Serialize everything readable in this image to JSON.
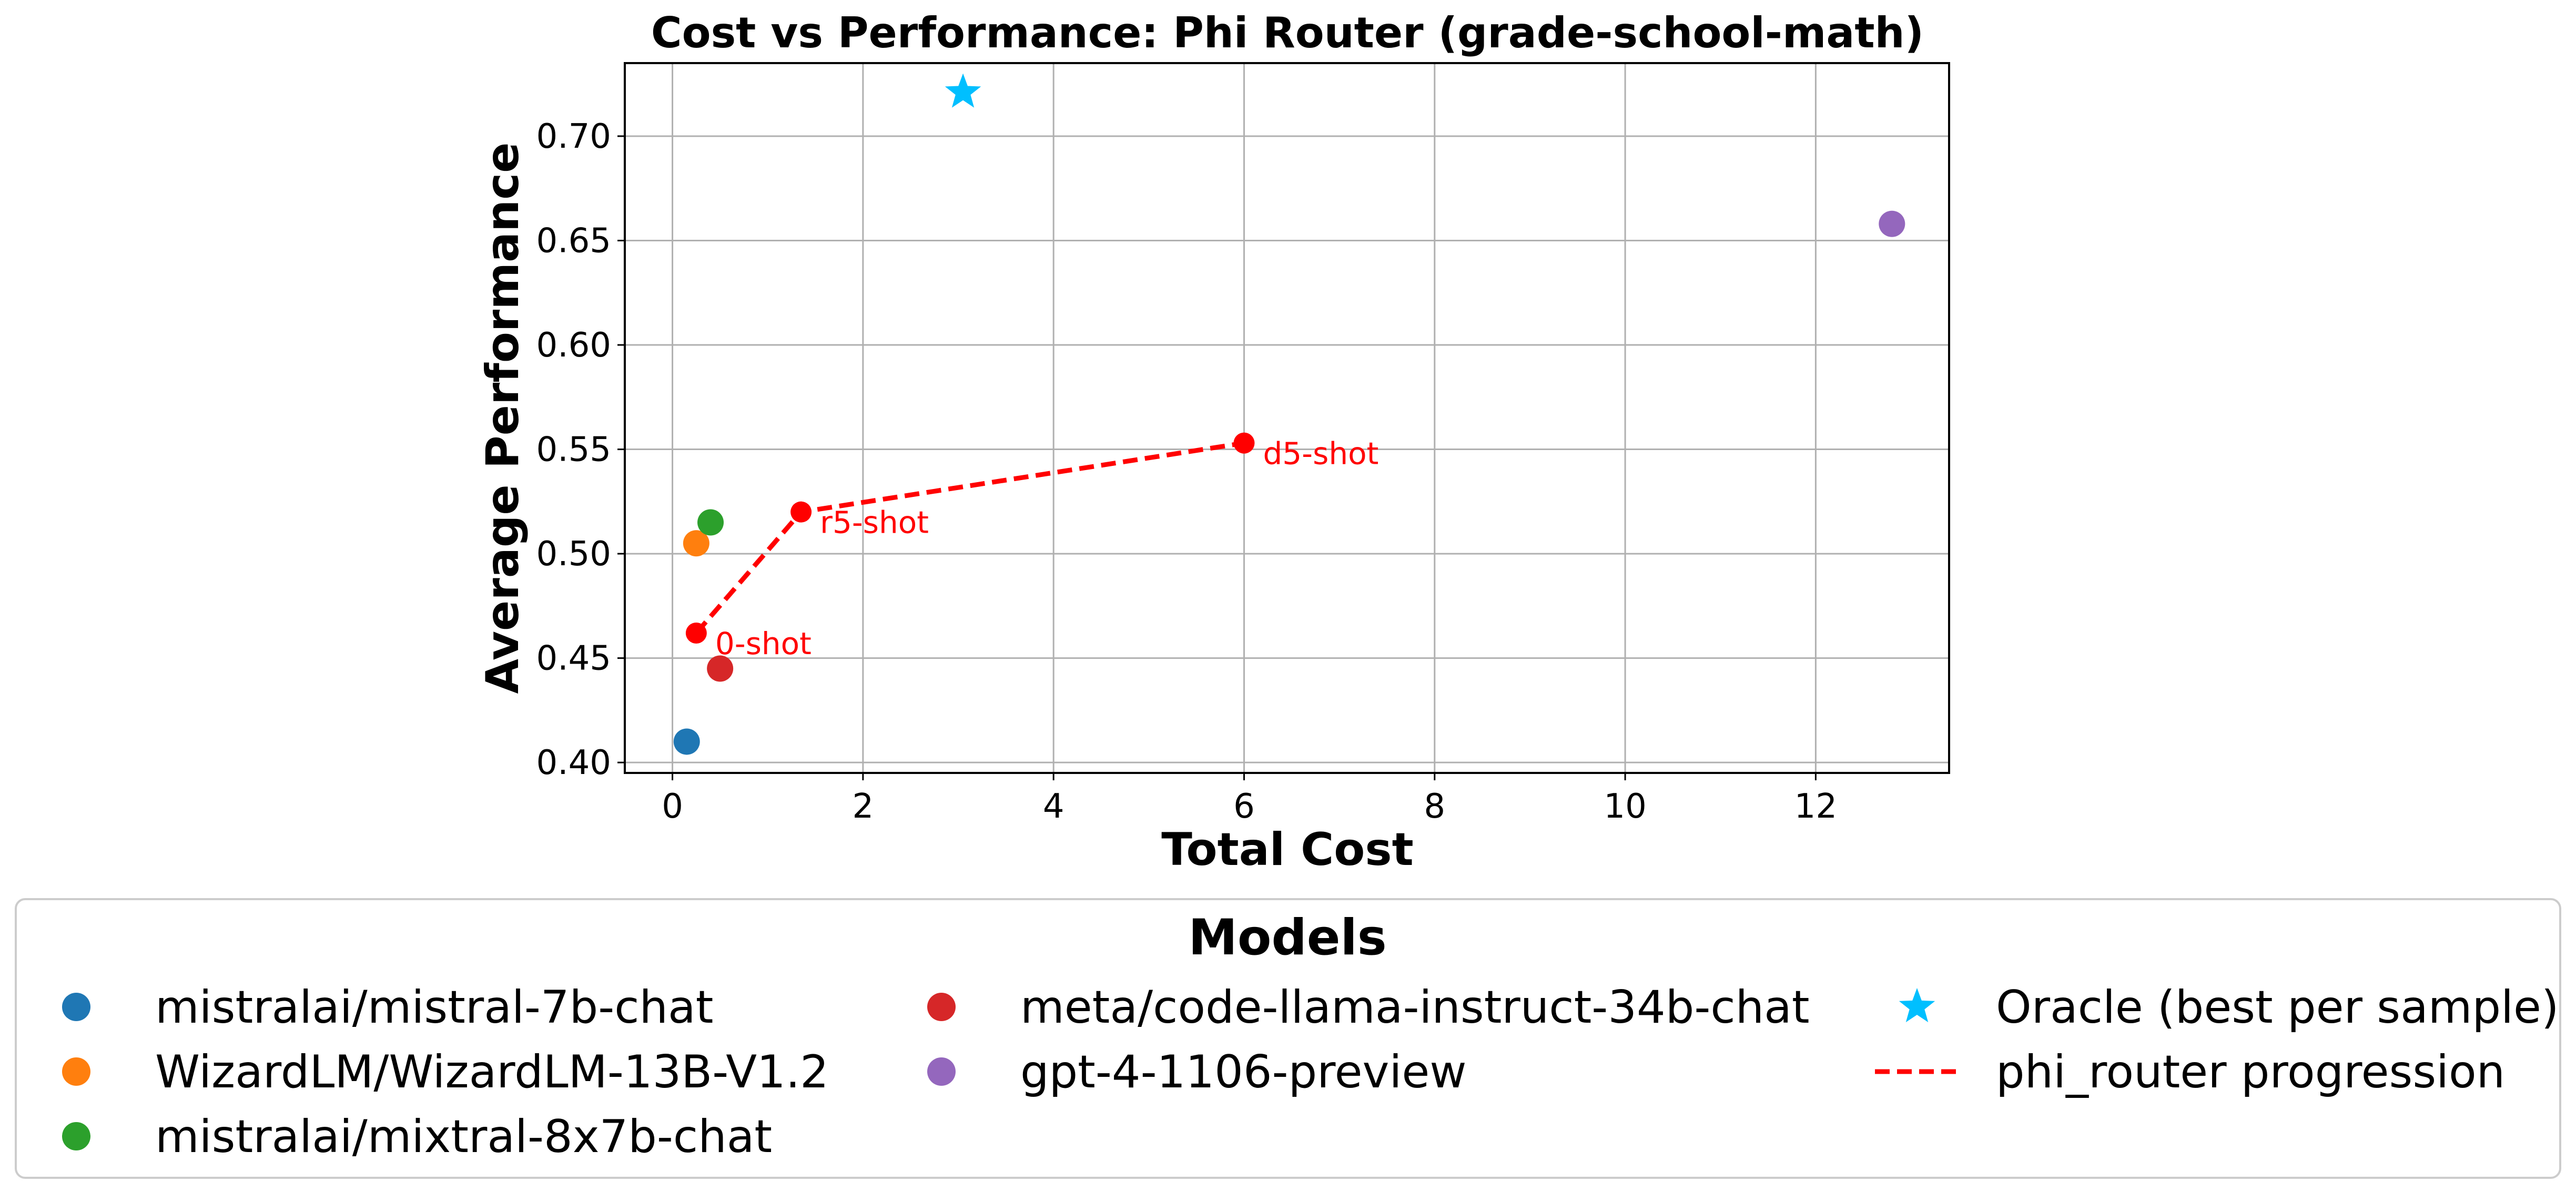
{
  "chart_data": {
    "type": "scatter",
    "title": "Cost vs Performance: Phi Router (grade-school-math)",
    "xlabel": "Total Cost",
    "ylabel": "Average Performance",
    "xlim": [
      -0.5,
      13.4
    ],
    "ylim": [
      0.395,
      0.735
    ],
    "x_ticks": [
      0,
      2,
      4,
      6,
      8,
      10,
      12
    ],
    "y_ticks": [
      0.4,
      0.45,
      0.5,
      0.55,
      0.6,
      0.65,
      0.7
    ],
    "grid": true,
    "legend_title": "Models",
    "legend_position": "bottom",
    "series": [
      {
        "name": "mistralai/mistral-7b-chat",
        "marker": "circle",
        "color": "#1f77b4",
        "x": [
          0.15
        ],
        "y": [
          0.41
        ]
      },
      {
        "name": "WizardLM/WizardLM-13B-V1.2",
        "marker": "circle",
        "color": "#ff7f0e",
        "x": [
          0.25
        ],
        "y": [
          0.505
        ]
      },
      {
        "name": "mistralai/mixtral-8x7b-chat",
        "marker": "circle",
        "color": "#2ca02c",
        "x": [
          0.4
        ],
        "y": [
          0.515
        ]
      },
      {
        "name": "meta/code-llama-instruct-34b-chat",
        "marker": "circle",
        "color": "#d62728",
        "x": [
          0.5
        ],
        "y": [
          0.445
        ]
      },
      {
        "name": "gpt-4-1106-preview",
        "marker": "circle",
        "color": "#9467bd",
        "x": [
          12.8
        ],
        "y": [
          0.658
        ]
      },
      {
        "name": "Oracle (best per sample)",
        "marker": "star",
        "color": "#00bfff",
        "x": [
          3.05
        ],
        "y": [
          0.721
        ]
      },
      {
        "name": "phi_router progression",
        "marker": "dashed-line",
        "color": "#ff0000",
        "x": [
          0.25,
          1.35,
          6.0
        ],
        "y": [
          0.462,
          0.52,
          0.553
        ],
        "point_labels": [
          "0-shot",
          "r5-shot",
          "d5-shot"
        ]
      }
    ]
  }
}
